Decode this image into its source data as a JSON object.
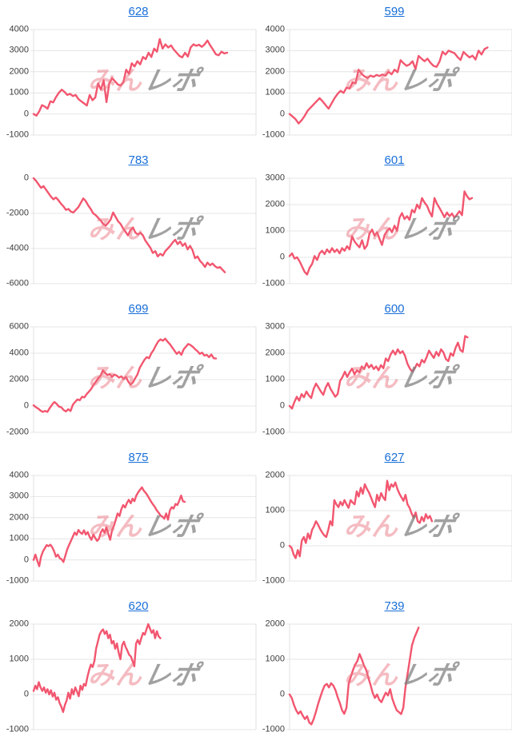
{
  "page": {
    "background": "#ffffff"
  },
  "style": {
    "line_color": "#f2566f",
    "title_link_color": "#1a6fd8",
    "grid_color": "#e4e4e4",
    "label_color": "#3d3d3d",
    "watermark_pink": "rgba(233,114,128,0.48)",
    "watermark_gray": "rgba(125,125,125,0.72)"
  },
  "watermark": {
    "pink_text": "みん",
    "gray_text": "レポ"
  },
  "chart_data": [
    {
      "type": "line",
      "title": "628",
      "yticks": [
        4000,
        3000,
        2000,
        1000,
        0,
        -1000
      ],
      "ylim": [
        -1000,
        4000
      ],
      "extent": 0.87,
      "grid": true,
      "values": [
        0,
        -80,
        120,
        420,
        350,
        250,
        600,
        550,
        800,
        1000,
        1150,
        1050,
        900,
        950,
        850,
        900,
        700,
        600,
        500,
        400,
        900,
        650,
        780,
        1450,
        1150,
        1600,
        560,
        1450,
        1700,
        1550,
        1400,
        1350,
        1500,
        2100,
        1900,
        2400,
        2250,
        2500,
        2350,
        2700,
        2600,
        2900,
        2700,
        3100,
        2950,
        3550,
        3100,
        3300,
        3150,
        3250,
        3050,
        2900,
        2750,
        2680,
        2900,
        2720,
        3150,
        3300,
        3230,
        3280,
        3180,
        3300,
        3480,
        3250,
        3050,
        2830,
        2780,
        2950,
        2870,
        2900
      ]
    },
    {
      "type": "line",
      "title": "599",
      "yticks": [
        4000,
        3000,
        2000,
        1000,
        0,
        -1000
      ],
      "ylim": [
        -1000,
        4000
      ],
      "extent": 0.89,
      "grid": true,
      "values": [
        0,
        -120,
        -250,
        -450,
        -300,
        -100,
        150,
        300,
        450,
        600,
        750,
        600,
        420,
        250,
        500,
        750,
        950,
        1100,
        1000,
        1250,
        1200,
        1500,
        1450,
        2100,
        1900,
        1780,
        1700,
        1820,
        1760,
        1850,
        1800,
        1870,
        1820,
        2000,
        1880,
        2100,
        1980,
        2550,
        2400,
        2280,
        2350,
        2500,
        2120,
        2750,
        2620,
        2500,
        2620,
        2420,
        2280,
        2230,
        2480,
        2950,
        2820,
        3000,
        2940,
        2880,
        2700,
        2560,
        2940,
        2800,
        2680,
        2760,
        2580,
        3000,
        2820,
        3080,
        3150
      ]
    },
    {
      "type": "line",
      "title": "783",
      "yticks": [
        0,
        -2000,
        -4000,
        -6000
      ],
      "ylim": [
        -6000,
        0
      ],
      "extent": 0.86,
      "grid": true,
      "values": [
        0,
        -150,
        -350,
        -550,
        -450,
        -650,
        -850,
        -1050,
        -1200,
        -1100,
        -1250,
        -1450,
        -1600,
        -1800,
        -1750,
        -1900,
        -1950,
        -1800,
        -1650,
        -1400,
        -1150,
        -1300,
        -1550,
        -1750,
        -2000,
        -2100,
        -2250,
        -2400,
        -2600,
        -2700,
        -2550,
        -2350,
        -1950,
        -2200,
        -2450,
        -2600,
        -2850,
        -3050,
        -3250,
        -2950,
        -2800,
        -3100,
        -3200,
        -3100,
        -3250,
        -3550,
        -3750,
        -3950,
        -4250,
        -4150,
        -4450,
        -4300,
        -4400,
        -4150,
        -4000,
        -3850,
        -3650,
        -3500,
        -3750,
        -3600,
        -3850,
        -3700,
        -4050,
        -3850,
        -4100,
        -4550,
        -4450,
        -4700,
        -4850,
        -5050,
        -4800,
        -4950,
        -4850,
        -5000,
        -5100,
        -5050,
        -5200,
        -5350
      ]
    },
    {
      "type": "line",
      "title": "601",
      "yticks": [
        3000,
        2000,
        1000,
        0,
        -1000
      ],
      "ylim": [
        -1000,
        3000
      ],
      "extent": 0.82,
      "grid": true,
      "values": [
        50,
        150,
        -50,
        0,
        -150,
        -350,
        -550,
        -650,
        -400,
        -250,
        50,
        -100,
        150,
        250,
        120,
        300,
        180,
        350,
        200,
        300,
        150,
        350,
        250,
        420,
        300,
        800,
        600,
        480,
        380,
        650,
        320,
        450,
        900,
        1050,
        820,
        950,
        700,
        470,
        850,
        1000,
        1100,
        950,
        1200,
        1000,
        1500,
        1680,
        1450,
        1560,
        1420,
        1800,
        1700,
        2000,
        1850,
        2250,
        2080,
        1950,
        1720,
        1550,
        2250,
        2030,
        1870,
        1700,
        1520,
        1700,
        1560,
        1660,
        1500,
        1620,
        1750,
        1600,
        2500,
        2320,
        2200,
        2250
      ]
    },
    {
      "type": "line",
      "title": "699",
      "yticks": [
        6000,
        4000,
        2000,
        0,
        -2000
      ],
      "ylim": [
        -2000,
        6000
      ],
      "extent": 0.82,
      "grid": true,
      "values": [
        50,
        -100,
        -200,
        -350,
        -450,
        -380,
        -450,
        -150,
        100,
        300,
        150,
        -50,
        -100,
        -300,
        -420,
        -250,
        -380,
        100,
        300,
        500,
        430,
        700,
        650,
        900,
        1100,
        1300,
        1600,
        1850,
        2100,
        2300,
        2700,
        2500,
        2350,
        2420,
        2200,
        2380,
        2300,
        2150,
        2250,
        2050,
        2200,
        1850,
        1620,
        1780,
        2100,
        2400,
        2900,
        3200,
        3500,
        3700,
        3620,
        4000,
        4250,
        4600,
        4900,
        5050,
        4950,
        5100,
        4880,
        4700,
        4450,
        4200,
        3950,
        4100,
        3880,
        4300,
        4500,
        4700,
        4620,
        4480,
        4300,
        4150,
        3950,
        4050,
        3820,
        3880,
        3700,
        3900,
        3620,
        3600
      ]
    },
    {
      "type": "line",
      "title": "600",
      "yticks": [
        3000,
        2000,
        1000,
        0,
        -1000
      ],
      "ylim": [
        -1000,
        3000
      ],
      "extent": 0.8,
      "grid": true,
      "values": [
        0,
        -100,
        150,
        350,
        200,
        450,
        330,
        550,
        400,
        300,
        650,
        850,
        700,
        550,
        420,
        700,
        870,
        650,
        500,
        350,
        450,
        950,
        1100,
        1300,
        1100,
        1280,
        1420,
        1200,
        1350,
        1280,
        1500,
        1400,
        1620,
        1450,
        1560,
        1400,
        1500,
        1350,
        1550,
        1430,
        1800,
        1700,
        1950,
        2100,
        1950,
        2150,
        2000,
        2080,
        1900,
        1600,
        1420,
        1300,
        1420,
        1600,
        1500,
        1750,
        1650,
        1850,
        2100,
        1950,
        1820,
        2050,
        1900,
        2150,
        2030,
        1780,
        1700,
        2000,
        1900,
        2200,
        2400,
        2120,
        2050,
        2650,
        2600
      ]
    },
    {
      "type": "line",
      "title": "875",
      "yticks": [
        4000,
        3000,
        2000,
        1000,
        0,
        -1000
      ],
      "ylim": [
        -1000,
        4000
      ],
      "extent": 0.68,
      "grid": true,
      "values": [
        0,
        250,
        -50,
        -300,
        150,
        400,
        550,
        700,
        650,
        720,
        600,
        400,
        150,
        250,
        80,
        30,
        -100,
        200,
        500,
        700,
        900,
        1100,
        1300,
        1180,
        1420,
        1300,
        1230,
        1400,
        1200,
        1320,
        1100,
        950,
        1200,
        1040,
        900,
        1000,
        1300,
        1450,
        1280,
        1550,
        1230,
        950,
        1400,
        1620,
        1900,
        2200,
        2080,
        2400,
        2600,
        2480,
        2700,
        2850,
        2680,
        2900,
        2780,
        3050,
        3200,
        3320,
        3440,
        3280,
        3180,
        3050,
        2900,
        2750,
        2620,
        2500,
        2350,
        2230,
        2100,
        2050,
        1950,
        2200,
        1900,
        2350,
        2500,
        2430,
        2650,
        2600,
        2800,
        3050,
        2780,
        2750
      ]
    },
    {
      "type": "line",
      "title": "627",
      "yticks": [
        2000,
        1000,
        0,
        -1000
      ],
      "ylim": [
        -1000,
        2000
      ],
      "extent": 0.64,
      "grid": true,
      "values": [
        0,
        -60,
        -250,
        -350,
        -120,
        -300,
        150,
        250,
        80,
        350,
        200,
        450,
        560,
        700,
        600,
        480,
        380,
        300,
        250,
        450,
        700,
        580,
        1300,
        1180,
        1100,
        1250,
        1150,
        1300,
        1180,
        1080,
        1300,
        1230,
        1180,
        1550,
        1400,
        1650,
        1480,
        1750,
        1620,
        1520,
        1380,
        1230,
        1100,
        1450,
        1280,
        1500,
        1380,
        1300,
        1850,
        1580,
        1750,
        1680,
        1800,
        1620,
        1480,
        1380,
        1280,
        1450,
        1180,
        1080,
        920,
        800,
        950,
        700,
        650,
        820,
        700,
        900,
        780,
        850,
        700
      ]
    },
    {
      "type": "line",
      "title": "620",
      "yticks": [
        2000,
        1000,
        0,
        -1000
      ],
      "ylim": [
        -1000,
        2000
      ],
      "extent": 0.57,
      "grid": true,
      "values": [
        100,
        250,
        150,
        350,
        200,
        100,
        200,
        50,
        150,
        0,
        120,
        -60,
        50,
        -150,
        -80,
        -250,
        -350,
        -500,
        -300,
        -180,
        50,
        -120,
        150,
        0,
        200,
        80,
        -50,
        250,
        130,
        300,
        250,
        500,
        700,
        850,
        780,
        950,
        1300,
        1500,
        1700,
        1800,
        1850,
        1720,
        1800,
        1600,
        1700,
        1450,
        1520,
        1300,
        1450,
        1180,
        1000,
        1400,
        1500,
        1350,
        1250,
        1130,
        1080,
        950,
        800,
        1450,
        1550,
        1430,
        1600,
        1750,
        1700,
        1850,
        2000,
        1880,
        1750,
        1830,
        1600,
        1800,
        1650,
        1600
      ]
    },
    {
      "type": "line",
      "title": "739",
      "yticks": [
        2000,
        1000,
        0,
        -1000
      ],
      "ylim": [
        -1000,
        2000
      ],
      "extent": 0.58,
      "grid": true,
      "values": [
        0,
        -100,
        -300,
        -450,
        -550,
        -480,
        -600,
        -700,
        -620,
        -800,
        -850,
        -700,
        -500,
        -280,
        -80,
        100,
        250,
        300,
        200,
        320,
        250,
        120,
        -80,
        -250,
        -450,
        -550,
        -380,
        300,
        500,
        700,
        850,
        950,
        1150,
        1000,
        830,
        700,
        480,
        280,
        50,
        -100,
        0,
        -150,
        -220,
        -80,
        50,
        -30,
        150,
        -120,
        -300,
        -450,
        -500,
        -560,
        -380,
        200,
        600,
        1000,
        1400,
        1600,
        1750,
        1900
      ]
    }
  ]
}
